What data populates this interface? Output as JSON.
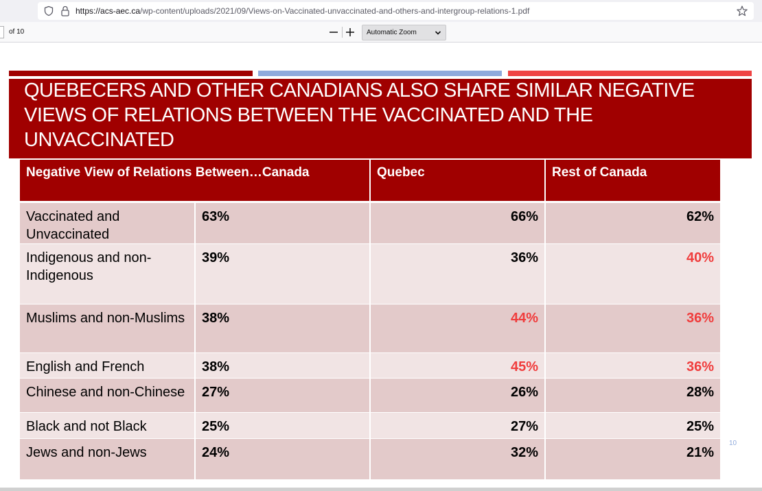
{
  "browser": {
    "url_host": "https://acs-aec.ca",
    "url_path": "/wp-content/uploads/2021/09/Views-on-Vaccinated-unvaccinated-and-others-and-intergroup-relations-1.pdf"
  },
  "pdf_toolbar": {
    "page_count": "of 10",
    "zoom_label": "Automatic Zoom"
  },
  "slide": {
    "title": "QUEBECERS AND OTHER CANADIANS ALSO SHARE SIMILAR NEGATIVE VIEWS OF RELATIONS BETWEEN THE VACCINATED AND THE UNVACCINATED",
    "page_number": "10",
    "table": {
      "headers": [
        "Negative  View of Relations Between…Canada",
        "Quebec",
        "Rest of Canada"
      ],
      "rows": [
        {
          "label": "Vaccinated and Unvaccinated",
          "canada": "63%",
          "quebec": "66%",
          "rest": "62%"
        },
        {
          "label": "Indigenous and non-Indigenous",
          "canada": "39%",
          "quebec": "36%",
          "rest": "40%"
        },
        {
          "label": "Muslims and non-Muslims",
          "canada": "38%",
          "quebec": "44%",
          "rest": "36%"
        },
        {
          "label": "English and French",
          "canada": "38%",
          "quebec": "45%",
          "rest": "36%"
        },
        {
          "label": "Chinese and non-Chinese",
          "canada": "27%",
          "quebec": "26%",
          "rest": "28%"
        },
        {
          "label": "Black and not Black",
          "canada": "25%",
          "quebec": "27%",
          "rest": "25%"
        },
        {
          "label": "Jews and non-Jews",
          "canada": "24%",
          "quebec": "32%",
          "rest": "21%"
        }
      ]
    }
  },
  "colors": {
    "brand_red": "#a00000",
    "accent_blue": "#8faadc",
    "highlight_red": "#f03c3c"
  }
}
